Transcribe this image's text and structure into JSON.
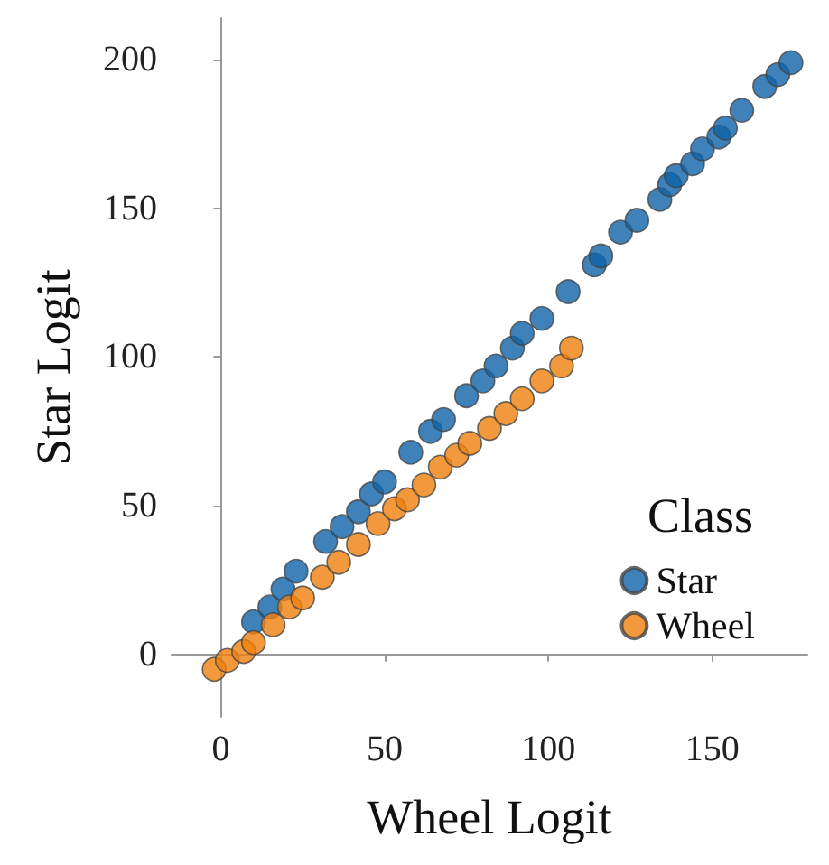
{
  "chart_data": {
    "type": "scatter",
    "xlabel": "Wheel Logit",
    "ylabel": "Star Logit",
    "legend_title": "Class",
    "legend": "right",
    "grid": false,
    "marker": "circle",
    "xlim": [
      -15,
      179
    ],
    "ylim": [
      -21,
      214
    ],
    "xticks": [
      0,
      50,
      100,
      150
    ],
    "yticks": [
      0,
      50,
      100,
      150,
      200
    ],
    "series": [
      {
        "name": "Star",
        "color": "#0f63a8",
        "x": [
          10,
          15,
          19,
          23,
          32,
          37,
          42,
          46,
          50,
          58,
          64,
          68,
          75,
          80,
          84,
          89,
          92,
          98,
          106,
          114,
          116,
          122,
          127,
          134,
          137,
          139,
          144,
          147,
          152,
          154,
          159,
          166,
          170,
          174
        ],
        "values": [
          11,
          16,
          22,
          28,
          38,
          43,
          48,
          54,
          58,
          68,
          75,
          79,
          87,
          92,
          97,
          103,
          108,
          113,
          122,
          131,
          134,
          142,
          146,
          153,
          158,
          161,
          165,
          170,
          174,
          177,
          183,
          191,
          195,
          199
        ]
      },
      {
        "name": "Wheel",
        "color": "#f07f0c",
        "x": [
          -2,
          2,
          7,
          10,
          16,
          21,
          25,
          31,
          36,
          42,
          48,
          53,
          57,
          62,
          67,
          72,
          76,
          82,
          87,
          92,
          98,
          104,
          107
        ],
        "values": [
          -5,
          -2,
          1,
          4,
          10,
          16,
          19,
          26,
          31,
          37,
          44,
          49,
          52,
          57,
          63,
          67,
          71,
          76,
          81,
          86,
          92,
          97,
          103
        ]
      }
    ]
  }
}
